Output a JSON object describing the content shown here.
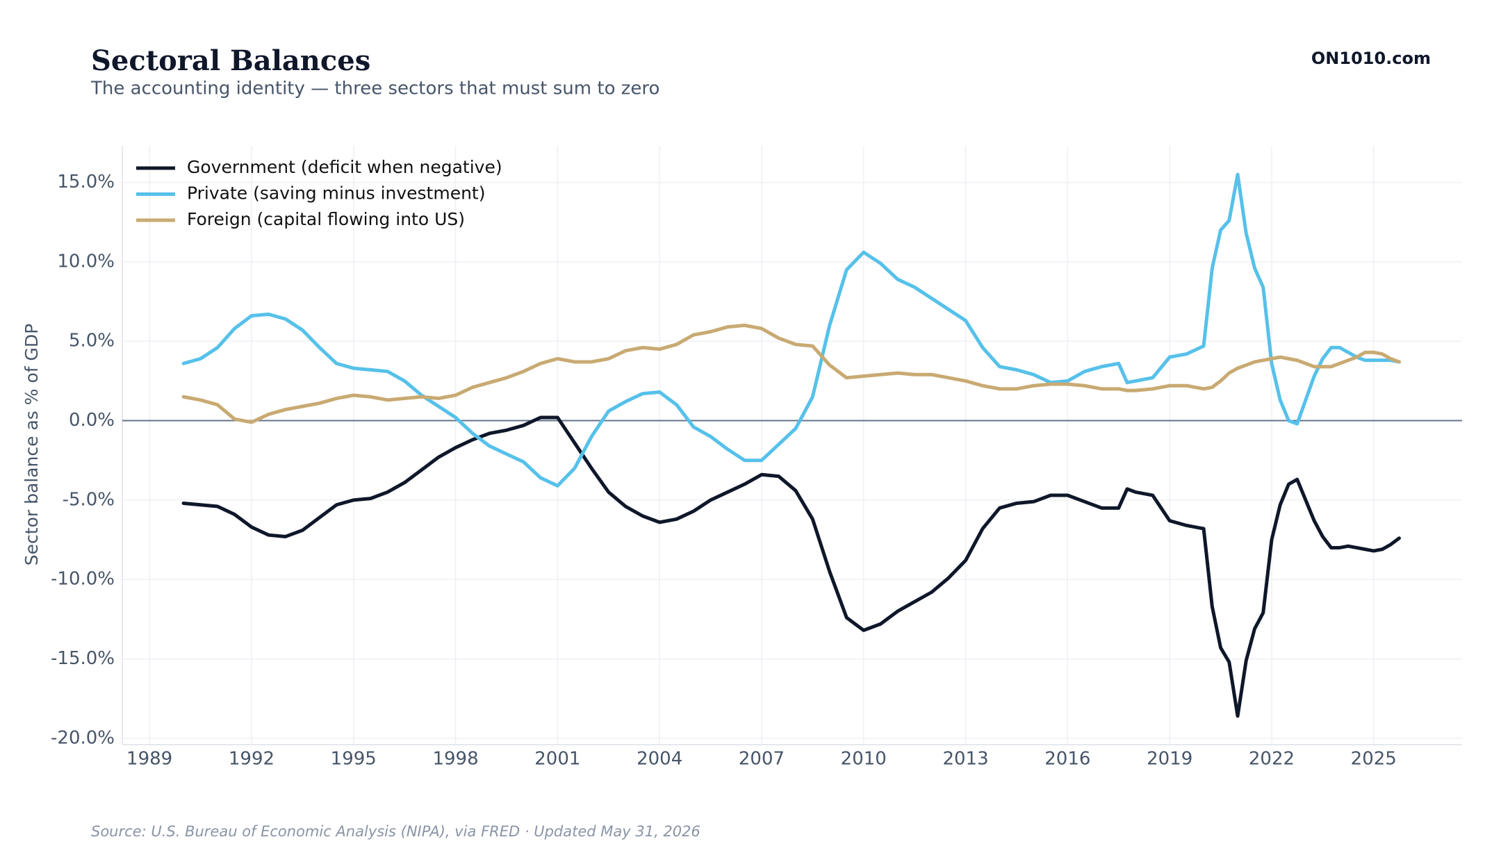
{
  "chart_data": {
    "type": "line",
    "title": "Sectoral Balances",
    "subtitle": "The accounting identity — three sectors that must sum to zero",
    "brand": "ON1010.com",
    "y_label": "Sector balance as % of GDP",
    "source": "Source: U.S. Bureau of Economic Analysis (NIPA), via FRED · Updated May 31, 2026",
    "x": [
      1990,
      1990.5,
      1991,
      1991.5,
      1992,
      1992.5,
      1993,
      1993.5,
      1994,
      1994.5,
      1995,
      1995.5,
      1996,
      1996.5,
      1997,
      1997.5,
      1998,
      1998.5,
      1999,
      1999.5,
      2000,
      2000.5,
      2001,
      2001.5,
      2002,
      2002.5,
      2003,
      2003.5,
      2004,
      2004.5,
      2005,
      2005.5,
      2006,
      2006.5,
      2007,
      2007.5,
      2008,
      2008.5,
      2009,
      2009.5,
      2010,
      2010.5,
      2011,
      2011.5,
      2012,
      2012.5,
      2013,
      2013.5,
      2014,
      2014.5,
      2015,
      2015.5,
      2016,
      2016.5,
      2017,
      2017.5,
      2017.75,
      2018,
      2018.5,
      2019,
      2019.5,
      2020,
      2020.25,
      2020.5,
      2020.75,
      2021,
      2021.25,
      2021.5,
      2021.75,
      2022,
      2022.25,
      2022.5,
      2022.75,
      2023,
      2023.25,
      2023.5,
      2023.75,
      2024,
      2024.25,
      2024.5,
      2024.75,
      2025,
      2025.25,
      2025.5,
      2025.75
    ],
    "series": [
      {
        "name": "Government (deficit when negative)",
        "color": "#0f172a",
        "values": [
          -5.2,
          -5.3,
          -5.4,
          -5.9,
          -6.7,
          -7.2,
          -7.3,
          -6.9,
          -6.1,
          -5.3,
          -5.0,
          -4.9,
          -4.5,
          -3.9,
          -3.1,
          -2.3,
          -1.7,
          -1.2,
          -0.8,
          -0.6,
          -0.3,
          0.2,
          0.2,
          -1.4,
          -3.0,
          -4.5,
          -5.4,
          -6.0,
          -6.4,
          -6.2,
          -5.7,
          -5.0,
          -4.5,
          -4.0,
          -3.4,
          -3.5,
          -4.4,
          -6.2,
          -9.5,
          -12.4,
          -13.2,
          -12.8,
          -12.0,
          -11.4,
          -10.8,
          -9.9,
          -8.8,
          -6.8,
          -5.5,
          -5.2,
          -5.1,
          -4.7,
          -4.7,
          -5.1,
          -5.5,
          -5.5,
          -4.3,
          -4.5,
          -4.7,
          -6.3,
          -6.6,
          -6.8,
          -11.7,
          -14.3,
          -15.2,
          -18.6,
          -15.1,
          -13.1,
          -12.1,
          -7.5,
          -5.3,
          -4.0,
          -3.7,
          -5.0,
          -6.3,
          -7.3,
          -8.0,
          -8.0,
          -7.9,
          -8.0,
          -8.1,
          -8.2,
          -8.1,
          -7.8,
          -7.4
        ]
      },
      {
        "name": "Private (saving minus investment)",
        "color": "#56c1ea",
        "values": [
          3.6,
          3.9,
          4.6,
          5.8,
          6.6,
          6.7,
          6.4,
          5.7,
          4.6,
          3.6,
          3.3,
          3.2,
          3.1,
          2.5,
          1.6,
          0.9,
          0.2,
          -0.8,
          -1.6,
          -2.1,
          -2.6,
          -3.6,
          -4.1,
          -3.0,
          -1.0,
          0.6,
          1.2,
          1.7,
          1.8,
          1.0,
          -0.4,
          -1.0,
          -1.8,
          -2.5,
          -2.5,
          -1.5,
          -0.5,
          1.5,
          6.0,
          9.5,
          10.6,
          9.9,
          8.9,
          8.4,
          7.7,
          7.0,
          6.3,
          4.6,
          3.4,
          3.2,
          2.9,
          2.4,
          2.5,
          3.1,
          3.4,
          3.6,
          2.4,
          2.5,
          2.7,
          4.0,
          4.2,
          4.7,
          9.6,
          12.0,
          12.6,
          15.5,
          11.8,
          9.6,
          8.4,
          3.6,
          1.3,
          0.0,
          -0.2,
          1.3,
          2.8,
          3.9,
          4.6,
          4.6,
          4.3,
          4.0,
          3.8,
          3.8,
          3.8,
          3.8,
          3.7
        ]
      },
      {
        "name": "Foreign (capital flowing into US)",
        "color": "#c8aa72",
        "values": [
          1.5,
          1.3,
          1.0,
          0.1,
          -0.1,
          0.4,
          0.7,
          0.9,
          1.1,
          1.4,
          1.6,
          1.5,
          1.3,
          1.4,
          1.5,
          1.4,
          1.6,
          2.1,
          2.4,
          2.7,
          3.1,
          3.6,
          3.9,
          3.7,
          3.7,
          3.9,
          4.4,
          4.6,
          4.5,
          4.8,
          5.4,
          5.6,
          5.9,
          6.0,
          5.8,
          5.2,
          4.8,
          4.7,
          3.5,
          2.7,
          2.8,
          2.9,
          3.0,
          2.9,
          2.9,
          2.7,
          2.5,
          2.2,
          2.0,
          2.0,
          2.2,
          2.3,
          2.3,
          2.2,
          2.0,
          2.0,
          1.9,
          1.9,
          2.0,
          2.2,
          2.2,
          2.0,
          2.1,
          2.5,
          3.0,
          3.3,
          3.5,
          3.7,
          3.8,
          3.9,
          4.0,
          3.9,
          3.8,
          3.6,
          3.4,
          3.4,
          3.4,
          3.6,
          3.8,
          4.0,
          4.3,
          4.3,
          4.2,
          3.9,
          3.7
        ]
      }
    ],
    "xlim": [
      1988.2,
      2027.6
    ],
    "ylim": [
      -20.4,
      17.3
    ],
    "xticks": [
      1989,
      1992,
      1995,
      1998,
      2001,
      2004,
      2007,
      2010,
      2013,
      2016,
      2019,
      2022,
      2025
    ],
    "yticks": [
      {
        "value": -20,
        "label": "-20.0%"
      },
      {
        "value": -15,
        "label": "-15.0%"
      },
      {
        "value": -10,
        "label": "-10.0%"
      },
      {
        "value": -5,
        "label": "-5.0%"
      },
      {
        "value": 0,
        "label": "0.0%"
      },
      {
        "value": 5,
        "label": "5.0%"
      },
      {
        "value": 10,
        "label": "10.0%"
      },
      {
        "value": 15,
        "label": "15.0%"
      }
    ],
    "reference_line": 0,
    "grid": true,
    "legend": "upper-left"
  }
}
